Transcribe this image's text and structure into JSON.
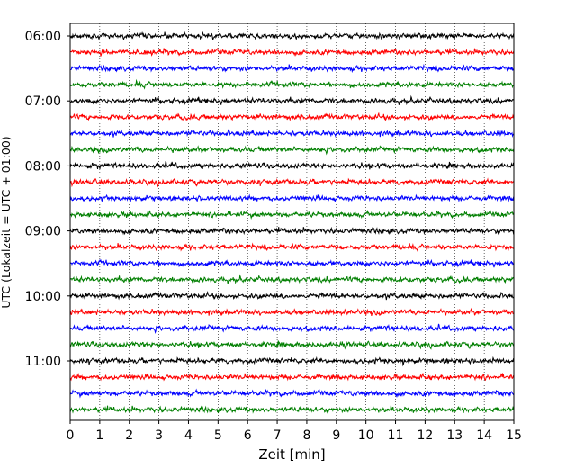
{
  "chart_data": {
    "type": "line",
    "title": "",
    "xlabel": "Zeit  [min]",
    "ylabel": "UTC (Lokalzeit = UTC + 01:00)",
    "xlim": [
      0,
      15
    ],
    "xticks": [
      "0",
      "1",
      "2",
      "3",
      "4",
      "5",
      "6",
      "7",
      "8",
      "9",
      "10",
      "11",
      "12",
      "13",
      "14",
      "15"
    ],
    "yticks": [
      "06:00",
      "07:00",
      "08:00",
      "09:00",
      "10:00",
      "11:00"
    ],
    "grid": "vertical dotted",
    "traces_per_hour": 4,
    "trace_start_times": [
      "06:00",
      "06:15",
      "06:30",
      "06:45",
      "07:00",
      "07:15",
      "07:30",
      "07:45",
      "08:00",
      "08:15",
      "08:30",
      "08:45",
      "09:00",
      "09:15",
      "09:30",
      "09:45",
      "10:00",
      "10:15",
      "10:30",
      "10:45",
      "11:00",
      "11:15",
      "11:30",
      "11:45"
    ],
    "trace_colors": [
      "#000000",
      "#ff0000",
      "#0000ff",
      "#007f00"
    ]
  }
}
